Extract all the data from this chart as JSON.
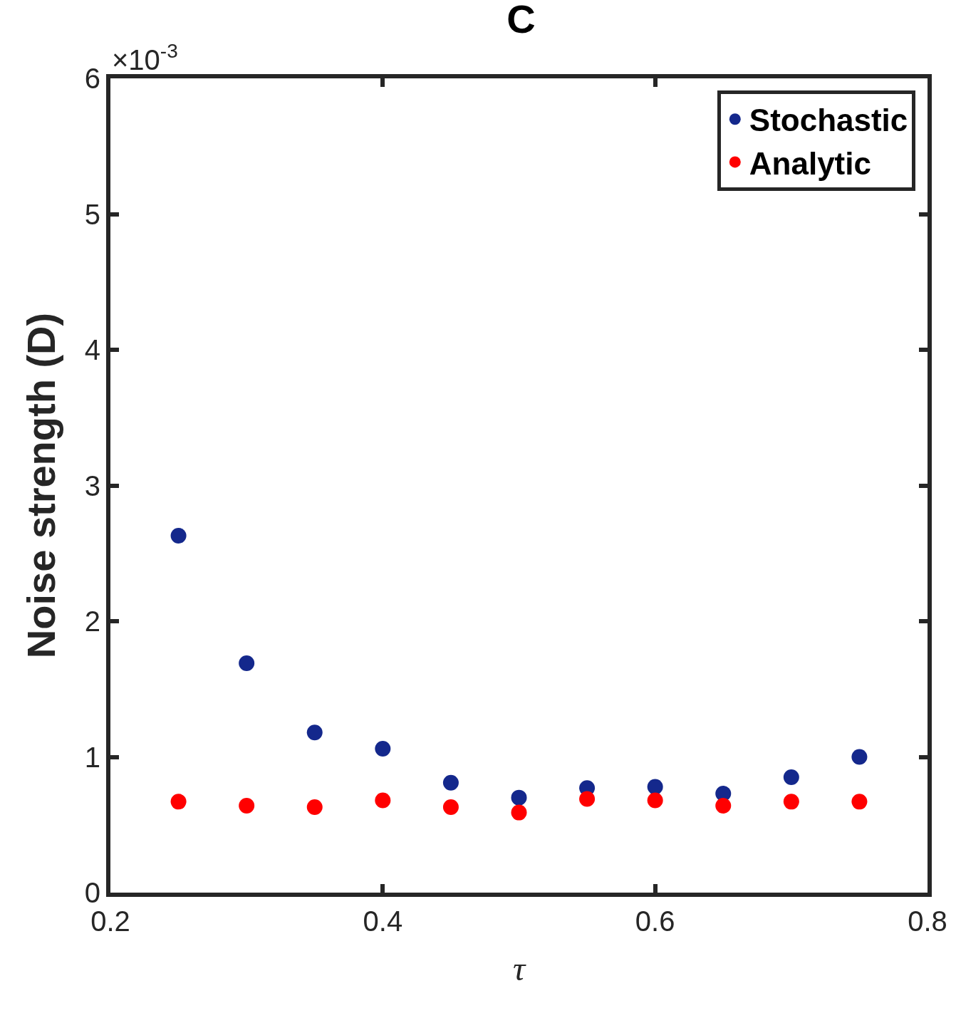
{
  "chart_data": {
    "type": "scatter",
    "title": "C",
    "xlabel": "τ",
    "ylabel": "Noise strength (D)",
    "annotations": [
      "×10$^{-3}$"
    ],
    "x": [
      0.25,
      0.3,
      0.35,
      0.4,
      0.45,
      0.5,
      0.55,
      0.6,
      0.65,
      0.7,
      0.75
    ],
    "series": [
      {
        "name": "Stochastic",
        "color": "#14288c",
        "values": [
          2.63,
          1.69,
          1.18,
          1.06,
          0.81,
          0.7,
          0.77,
          0.78,
          0.73,
          0.85,
          1.0
        ]
      },
      {
        "name": "Analytic",
        "color": "#ff0000",
        "values": [
          0.67,
          0.64,
          0.63,
          0.68,
          0.63,
          0.59,
          0.69,
          0.68,
          0.64,
          0.67,
          0.67
        ]
      }
    ],
    "xlim": [
      0.2,
      0.8
    ],
    "xticks": [
      0.2,
      0.4,
      0.6,
      0.8
    ],
    "ylim": [
      0,
      6
    ],
    "yticks": [
      0,
      1,
      2,
      3,
      4,
      5,
      6
    ],
    "legend": "top right",
    "marker": "circle"
  }
}
